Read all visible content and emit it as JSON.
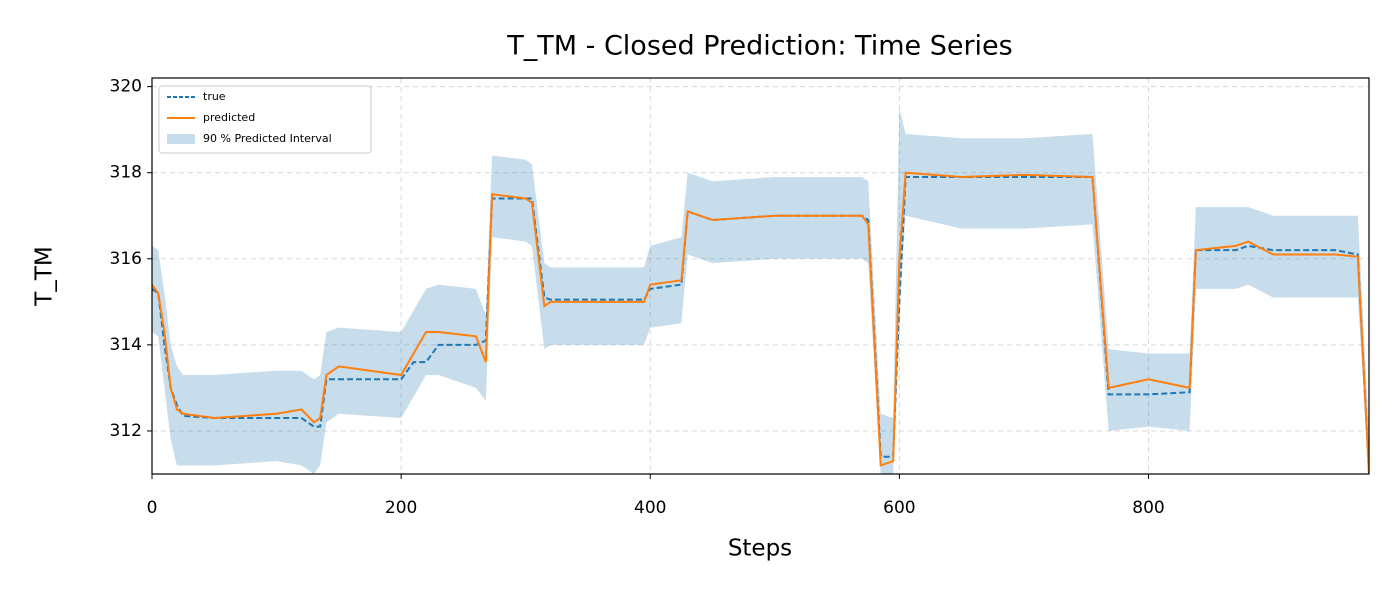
{
  "chart_data": {
    "type": "line",
    "title": "T_TM - Closed Prediction: Time Series",
    "xlabel": "Steps",
    "ylabel": "T_TM",
    "x": [
      0,
      5,
      10,
      15,
      20,
      25,
      50,
      100,
      120,
      130,
      135,
      140,
      150,
      200,
      210,
      220,
      230,
      260,
      268,
      273,
      300,
      305,
      315,
      320,
      395,
      400,
      425,
      430,
      440,
      450,
      500,
      570,
      575,
      585,
      595,
      600,
      605,
      650,
      700,
      755,
      768,
      800,
      833,
      838,
      870,
      880,
      900,
      950,
      968,
      977
    ],
    "series": [
      {
        "name": "true",
        "color": "#1f77b4",
        "dashed": true,
        "values": [
          315.3,
          315.2,
          314.0,
          313.0,
          312.6,
          312.35,
          312.3,
          312.3,
          312.3,
          312.1,
          312.1,
          313.2,
          313.2,
          313.2,
          313.6,
          313.6,
          314.0,
          314.0,
          314.1,
          317.4,
          317.4,
          317.4,
          315.1,
          315.05,
          315.05,
          315.3,
          315.4,
          317.1,
          317.0,
          316.9,
          317.0,
          317.0,
          316.9,
          311.4,
          311.4,
          315.0,
          317.9,
          317.9,
          317.9,
          317.9,
          312.85,
          312.85,
          312.9,
          316.2,
          316.2,
          316.3,
          316.2,
          316.2,
          316.1,
          311.0
        ]
      },
      {
        "name": "predicted",
        "color": "#ff7f0e",
        "dashed": false,
        "values": [
          315.4,
          315.2,
          314.3,
          313.0,
          312.5,
          312.4,
          312.3,
          312.4,
          312.5,
          312.2,
          312.3,
          313.3,
          313.5,
          313.3,
          313.8,
          314.3,
          314.3,
          314.2,
          313.6,
          317.5,
          317.4,
          317.3,
          314.9,
          315.0,
          315.0,
          315.4,
          315.5,
          317.1,
          317.0,
          316.9,
          317.0,
          317.0,
          316.8,
          311.2,
          311.3,
          316.0,
          318.0,
          317.9,
          317.95,
          317.9,
          313.0,
          313.2,
          313.0,
          316.2,
          316.3,
          316.4,
          316.1,
          316.1,
          316.05,
          311.0
        ]
      }
    ],
    "interval": {
      "name": "90 % Predicted Interval",
      "color": "#1f77b4",
      "lower": [
        314.3,
        314.2,
        313.0,
        311.8,
        311.2,
        311.2,
        311.2,
        311.3,
        311.2,
        311.0,
        311.2,
        312.2,
        312.4,
        312.3,
        312.8,
        313.3,
        313.3,
        313.0,
        312.7,
        316.5,
        316.4,
        316.3,
        313.9,
        314.0,
        314.0,
        314.4,
        314.5,
        316.1,
        316.0,
        315.9,
        316.0,
        316.0,
        315.9,
        311.0,
        311.0,
        315.0,
        317.0,
        316.7,
        316.7,
        316.8,
        312.0,
        312.1,
        312.0,
        315.3,
        315.3,
        315.4,
        315.1,
        315.1,
        315.1,
        311.0
      ],
      "upper": [
        316.3,
        316.2,
        315.2,
        314.0,
        313.5,
        313.3,
        313.3,
        313.4,
        313.4,
        313.2,
        313.3,
        314.3,
        314.4,
        314.3,
        314.8,
        315.3,
        315.4,
        315.3,
        314.7,
        318.4,
        318.3,
        318.2,
        315.9,
        315.8,
        315.8,
        316.3,
        316.5,
        318.0,
        317.9,
        317.8,
        317.9,
        317.9,
        317.8,
        312.4,
        312.3,
        319.5,
        318.9,
        318.8,
        318.8,
        318.9,
        313.9,
        313.8,
        313.8,
        317.2,
        317.2,
        317.2,
        317.0,
        317.0,
        317.0,
        312.0
      ]
    },
    "xlim": [
      0,
      977
    ],
    "ylim": [
      311.0,
      320.2
    ],
    "xticks": [
      0,
      200,
      400,
      600,
      800
    ],
    "yticks": [
      312,
      314,
      316,
      318,
      320
    ],
    "grid": true,
    "legend": "upper left"
  }
}
